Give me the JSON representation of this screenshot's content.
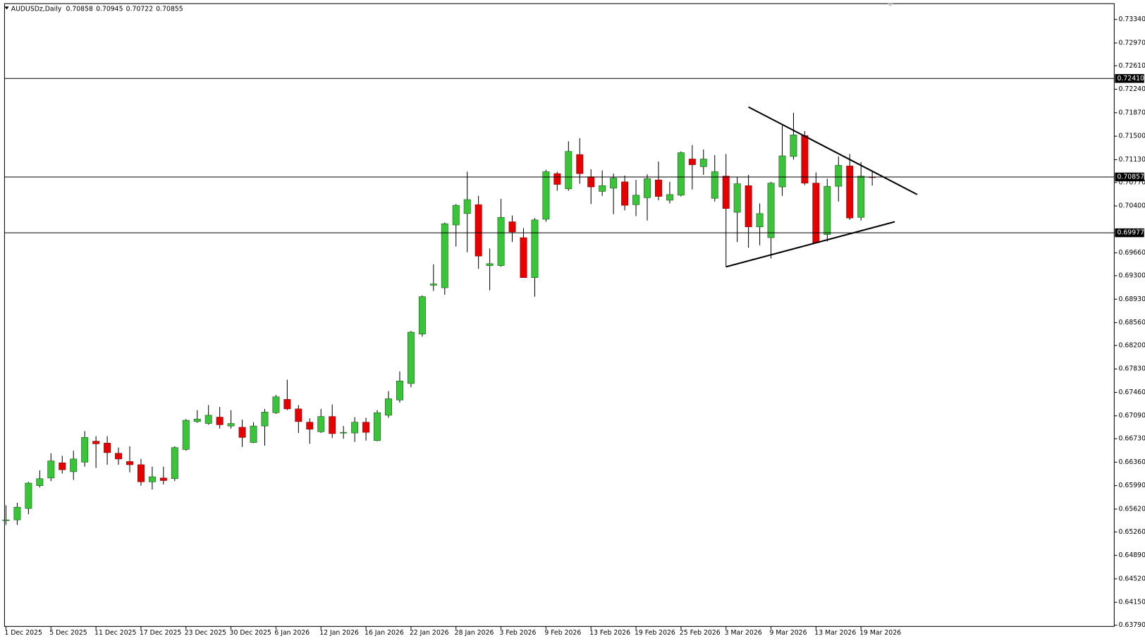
{
  "chart_data": {
    "type": "candlestick",
    "title": "AUDUSDz,Daily",
    "categories": [
      "1 Dec 2025",
      null,
      null,
      null,
      "5 Dec 2025",
      null,
      null,
      null,
      "11 Dec 2025",
      null,
      null,
      null,
      "17 Dec 2025",
      null,
      null,
      null,
      "23 Dec 2025",
      null,
      null,
      null,
      "30 Dec 2025",
      null,
      null,
      null,
      "6 Jan 2026",
      null,
      null,
      null,
      "12 Jan 2026",
      null,
      null,
      null,
      "16 Jan 2026",
      null,
      null,
      null,
      "22 Jan 2026",
      null,
      null,
      null,
      "28 Jan 2026",
      null,
      null,
      null,
      "3 Feb 2026",
      null,
      null,
      null,
      "9 Feb 2026",
      null,
      null,
      null,
      "13 Feb 2026",
      null,
      null,
      null,
      "19 Feb 2026",
      null,
      null,
      null,
      "25 Feb 2026",
      null,
      null,
      null,
      "3 Mar 2026",
      null,
      null,
      null,
      "9 Mar 2026",
      null,
      null,
      null,
      "13 Mar 2026",
      null,
      null,
      null,
      "19 Mar 2026",
      null
    ],
    "open": [
      0.6545,
      0.6545,
      0.6563,
      0.6599,
      0.6611,
      0.6635,
      0.6621,
      0.6636,
      0.6669,
      0.6666,
      0.665,
      0.6637,
      0.6632,
      0.6605,
      0.6611,
      0.661,
      0.6656,
      0.67,
      0.6697,
      0.6707,
      0.6693,
      0.6691,
      0.6667,
      0.6693,
      0.6714,
      0.6735,
      0.672,
      0.6699,
      0.6684,
      0.6708,
      0.6683,
      0.6682,
      0.6699,
      0.667,
      0.671,
      0.6734,
      0.676,
      0.6838,
      0.6915,
      0.6911,
      0.701,
      0.7028,
      0.7042,
      0.6946,
      0.6946,
      0.7015,
      0.699,
      0.6927,
      0.7019,
      0.7091,
      0.7067,
      0.7121,
      0.7086,
      0.7063,
      0.7068,
      0.7078,
      0.7042,
      0.7053,
      0.7081,
      0.7049,
      0.7057,
      0.7114,
      0.7102,
      0.7052,
      0.7087,
      0.703,
      0.7072,
      0.7007,
      0.699,
      0.707,
      0.7118,
      0.7151,
      0.7076,
      0.6995,
      0.7071,
      0.7103,
      0.7022,
      0.70858
    ],
    "high": [
      0.6568,
      0.6572,
      0.6605,
      0.6623,
      0.665,
      0.6646,
      0.6654,
      0.6685,
      0.6677,
      0.6677,
      0.6659,
      0.6661,
      0.6641,
      0.6629,
      0.6629,
      0.6661,
      0.6704,
      0.6718,
      0.6726,
      0.6723,
      0.6718,
      0.6703,
      0.6699,
      0.672,
      0.6742,
      0.6766,
      0.6726,
      0.6705,
      0.672,
      0.6727,
      0.6693,
      0.6707,
      0.6706,
      0.6718,
      0.6748,
      0.6779,
      0.6843,
      0.6899,
      0.6948,
      0.7014,
      0.7043,
      0.7094,
      0.7056,
      0.6973,
      0.7051,
      0.7025,
      0.7005,
      0.7021,
      0.7097,
      0.7094,
      0.7142,
      0.7147,
      0.7098,
      0.7096,
      0.7091,
      0.7088,
      0.7081,
      0.709,
      0.711,
      0.7078,
      0.7126,
      0.7136,
      0.7129,
      0.712,
      0.7122,
      0.7086,
      0.7089,
      0.7044,
      0.7078,
      0.7167,
      0.7187,
      0.7158,
      0.7093,
      0.7083,
      0.7118,
      0.7122,
      0.7109,
      0.70945
    ],
    "low": [
      0.6537,
      0.6537,
      0.6554,
      0.6596,
      0.6606,
      0.6618,
      0.6608,
      0.6629,
      0.6627,
      0.6632,
      0.6632,
      0.662,
      0.6599,
      0.6593,
      0.6601,
      0.6606,
      0.6654,
      0.6698,
      0.6695,
      0.6689,
      0.6689,
      0.666,
      0.6666,
      0.6662,
      0.6712,
      0.6718,
      0.6682,
      0.6665,
      0.6682,
      0.6674,
      0.6673,
      0.6668,
      0.667,
      0.6669,
      0.6706,
      0.673,
      0.6754,
      0.6834,
      0.6906,
      0.69,
      0.6976,
      0.6967,
      0.6941,
      0.6907,
      0.6944,
      0.6983,
      0.6927,
      0.6897,
      0.7015,
      0.7064,
      0.7064,
      0.7075,
      0.7043,
      0.7056,
      0.7027,
      0.7033,
      0.7024,
      0.7017,
      0.7049,
      0.7044,
      0.7055,
      0.7066,
      0.7089,
      0.7047,
      0.6944,
      0.6983,
      0.6974,
      0.6978,
      0.6957,
      0.7056,
      0.7113,
      0.7073,
      0.6981,
      0.6984,
      0.7047,
      0.7018,
      0.7017,
      0.70722
    ],
    "close": [
      0.6545,
      0.6565,
      0.6603,
      0.661,
      0.6638,
      0.6624,
      0.6641,
      0.6675,
      0.6665,
      0.6651,
      0.6641,
      0.6632,
      0.6605,
      0.6613,
      0.6607,
      0.6659,
      0.6702,
      0.6704,
      0.671,
      0.6695,
      0.6697,
      0.6675,
      0.6693,
      0.6715,
      0.6739,
      0.672,
      0.67,
      0.6688,
      0.6708,
      0.6681,
      0.6683,
      0.6699,
      0.6683,
      0.6714,
      0.6736,
      0.6764,
      0.6841,
      0.6897,
      0.6917,
      0.7012,
      0.7041,
      0.705,
      0.6961,
      0.6949,
      0.7022,
      0.6999,
      0.6927,
      0.7018,
      0.7094,
      0.7074,
      0.7126,
      0.7091,
      0.707,
      0.7072,
      0.7084,
      0.7041,
      0.7057,
      0.7083,
      0.7055,
      0.7058,
      0.7124,
      0.7105,
      0.7114,
      0.7094,
      0.7036,
      0.7075,
      0.7007,
      0.7028,
      0.7076,
      0.7119,
      0.7152,
      0.7076,
      0.6982,
      0.7071,
      0.7104,
      0.7021,
      0.7087,
      0.70855
    ],
    "up_color": "#3ac43a",
    "down_color": "#e60000",
    "ylim": [
      0.6377,
      0.7359
    ],
    "yticks": [
      {
        "value": 0.7334,
        "label": "0.73340"
      },
      {
        "value": 0.7297,
        "label": "0.72970"
      },
      {
        "value": 0.7261,
        "label": "0.72610"
      },
      {
        "value": 0.7224,
        "label": "0.72240"
      },
      {
        "value": 0.7187,
        "label": "0.71870"
      },
      {
        "value": 0.715,
        "label": "0.71500"
      },
      {
        "value": 0.7113,
        "label": "0.71130"
      },
      {
        "value": 0.7077,
        "label": "0.70770"
      },
      {
        "value": 0.704,
        "label": "0.70400"
      },
      {
        "value": 0.6966,
        "label": "0.69660"
      },
      {
        "value": 0.693,
        "label": "0.69300"
      },
      {
        "value": 0.6893,
        "label": "0.68930"
      },
      {
        "value": 0.6856,
        "label": "0.68560"
      },
      {
        "value": 0.682,
        "label": "0.68200"
      },
      {
        "value": 0.6783,
        "label": "0.67830"
      },
      {
        "value": 0.6746,
        "label": "0.67460"
      },
      {
        "value": 0.6709,
        "label": "0.67090"
      },
      {
        "value": 0.6673,
        "label": "0.66730"
      },
      {
        "value": 0.6636,
        "label": "0.66360"
      },
      {
        "value": 0.6599,
        "label": "0.65990"
      },
      {
        "value": 0.6562,
        "label": "0.65620"
      },
      {
        "value": 0.6526,
        "label": "0.65260"
      },
      {
        "value": 0.6489,
        "label": "0.64890"
      },
      {
        "value": 0.6452,
        "label": "0.64520"
      },
      {
        "value": 0.6415,
        "label": "0.64150"
      },
      {
        "value": 0.6379,
        "label": "0.63790"
      }
    ],
    "hlines": [
      {
        "value": 0.7241,
        "label": "0.72410"
      },
      {
        "value": 0.70857,
        "label": "0.70857"
      },
      {
        "value": 0.69977,
        "label": "0.69977"
      }
    ],
    "trendlines": [
      {
        "x": [
          66,
          81
        ],
        "y": [
          0.7196,
          0.7058
        ]
      },
      {
        "x": [
          64,
          79
        ],
        "y": [
          0.6944,
          0.7015
        ]
      }
    ],
    "grid": false
  }
}
